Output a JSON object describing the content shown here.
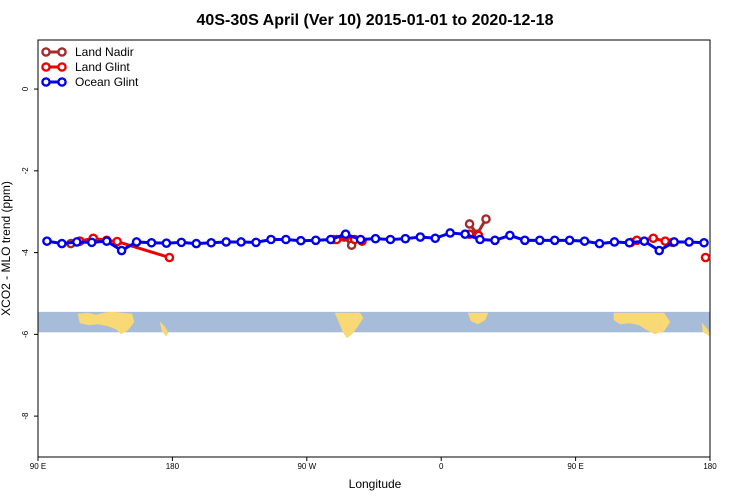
{
  "chart_data": {
    "type": "line",
    "title": "40S-30S April (Ver 10)   2015-01-01 to 2020-12-18",
    "xlabel": "Longitude",
    "ylabel": "XCO2 - MLO trend (ppm)",
    "xlim": [
      90,
      540
    ],
    "ylim": [
      -9.0,
      1.2
    ],
    "x_ticks": [
      {
        "value": 90,
        "label": "90 E"
      },
      {
        "value": 180,
        "label": "180"
      },
      {
        "value": 270,
        "label": "90 W"
      },
      {
        "value": 360,
        "label": "0"
      },
      {
        "value": 450,
        "label": "90 E"
      },
      {
        "value": 540,
        "label": "180"
      }
    ],
    "y_ticks": [
      {
        "value": 0,
        "label": "0"
      },
      {
        "value": -2,
        "label": "-2"
      },
      {
        "value": -4,
        "label": "-4"
      },
      {
        "value": -6,
        "label": "-6"
      },
      {
        "value": -8,
        "label": "-8"
      }
    ],
    "legend_position": "top-left",
    "map_band": {
      "y_range": [
        -5.45,
        -5.95
      ],
      "ocean_color": "#a7bcd9",
      "land_color": "#f9d876"
    },
    "series": [
      {
        "name": "Land Nadir",
        "color": "#a52a2a",
        "segments": [
          {
            "x": [
              112,
              118
            ],
            "y": [
              -3.78,
              -3.72
            ]
          },
          {
            "x": [
              288,
              295,
              300
            ],
            "y": [
              -3.68,
              -3.62,
              -3.82
            ]
          },
          {
            "x": [
              379,
              384,
              390
            ],
            "y": [
              -3.3,
              -3.55,
              -3.18
            ]
          }
        ]
      },
      {
        "name": "Land Glint",
        "color": "#ee0000",
        "segments": [
          {
            "x": [
              118,
              127,
              136,
              143,
              178
            ],
            "y": [
              -3.72,
              -3.65,
              -3.7,
              -3.73,
              -4.12
            ]
          },
          {
            "x": [
              290,
              296,
              302,
              307
            ],
            "y": [
              -3.68,
              -3.6,
              -3.68,
              -3.72
            ]
          },
          {
            "x": [
              379,
              385
            ],
            "y": [
              -3.55,
              -3.58
            ]
          },
          {
            "x": [
              487,
              491,
              502,
              510,
              515
            ],
            "y": [
              -3.75,
              -3.7,
              -3.65,
              -3.72,
              -3.75
            ]
          },
          {
            "x": [
              537
            ],
            "y": [
              -4.12
            ]
          }
        ]
      },
      {
        "name": "Ocean Glint",
        "color": "#0000ee",
        "segments": [
          {
            "x": [
              96,
              106,
              116,
              126,
              136,
              146,
              156,
              166,
              176,
              186,
              196,
              206,
              216,
              226,
              236,
              246,
              256,
              266,
              276,
              286,
              296,
              306,
              316,
              326,
              336,
              346,
              356,
              366,
              376,
              386,
              396,
              406,
              416,
              426,
              436,
              446,
              456,
              466,
              476,
              486,
              496,
              506,
              516,
              526,
              536
            ],
            "y": [
              -3.72,
              -3.78,
              -3.74,
              -3.75,
              -3.72,
              -3.95,
              -3.74,
              -3.76,
              -3.77,
              -3.75,
              -3.78,
              -3.76,
              -3.74,
              -3.74,
              -3.75,
              -3.68,
              -3.68,
              -3.71,
              -3.7,
              -3.68,
              -3.55,
              -3.68,
              -3.66,
              -3.68,
              -3.66,
              -3.62,
              -3.65,
              -3.52,
              -3.55,
              -3.68,
              -3.7,
              -3.58,
              -3.7,
              -3.7,
              -3.7,
              -3.7,
              -3.72,
              -3.78,
              -3.74,
              -3.76,
              -3.72,
              -3.95,
              -3.74,
              -3.74,
              -3.76
            ]
          }
        ]
      }
    ]
  }
}
